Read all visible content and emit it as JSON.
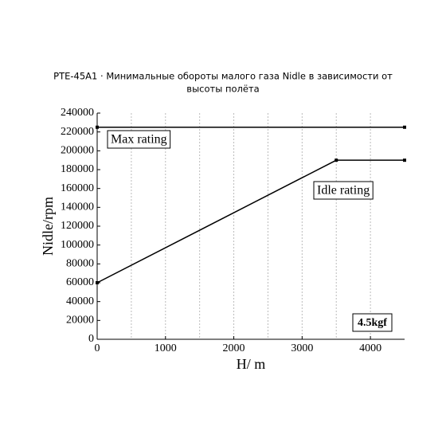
{
  "chart_data": {
    "type": "line",
    "title": [
      "PTE-45A1 · Минимальные обороты малого газа Nidle в зависимости от",
      "высоты полёта"
    ],
    "x_label": "H/ m",
    "y_label": "Nidle/rpm",
    "xlim": [
      0,
      4500
    ],
    "xticks": [
      0,
      1000,
      2000,
      3000,
      4000
    ],
    "xgrid": [
      500,
      1000,
      1500,
      2000,
      2500,
      3000,
      3500,
      4000
    ],
    "ylim": [
      0,
      240000
    ],
    "yticks": [
      0,
      20000,
      40000,
      60000,
      80000,
      100000,
      120000,
      140000,
      160000,
      180000,
      200000,
      220000,
      240000
    ],
    "series": [
      {
        "name": "Max rating",
        "color": "#000000",
        "x": [
          0,
          4500
        ],
        "values": [
          225000,
          225000
        ]
      },
      {
        "name": "Idle rating",
        "color": "#000000",
        "x": [
          0,
          3500,
          4500
        ],
        "values": [
          60000,
          190000,
          190000
        ]
      }
    ],
    "annotations": [
      "4.5kgf"
    ]
  }
}
